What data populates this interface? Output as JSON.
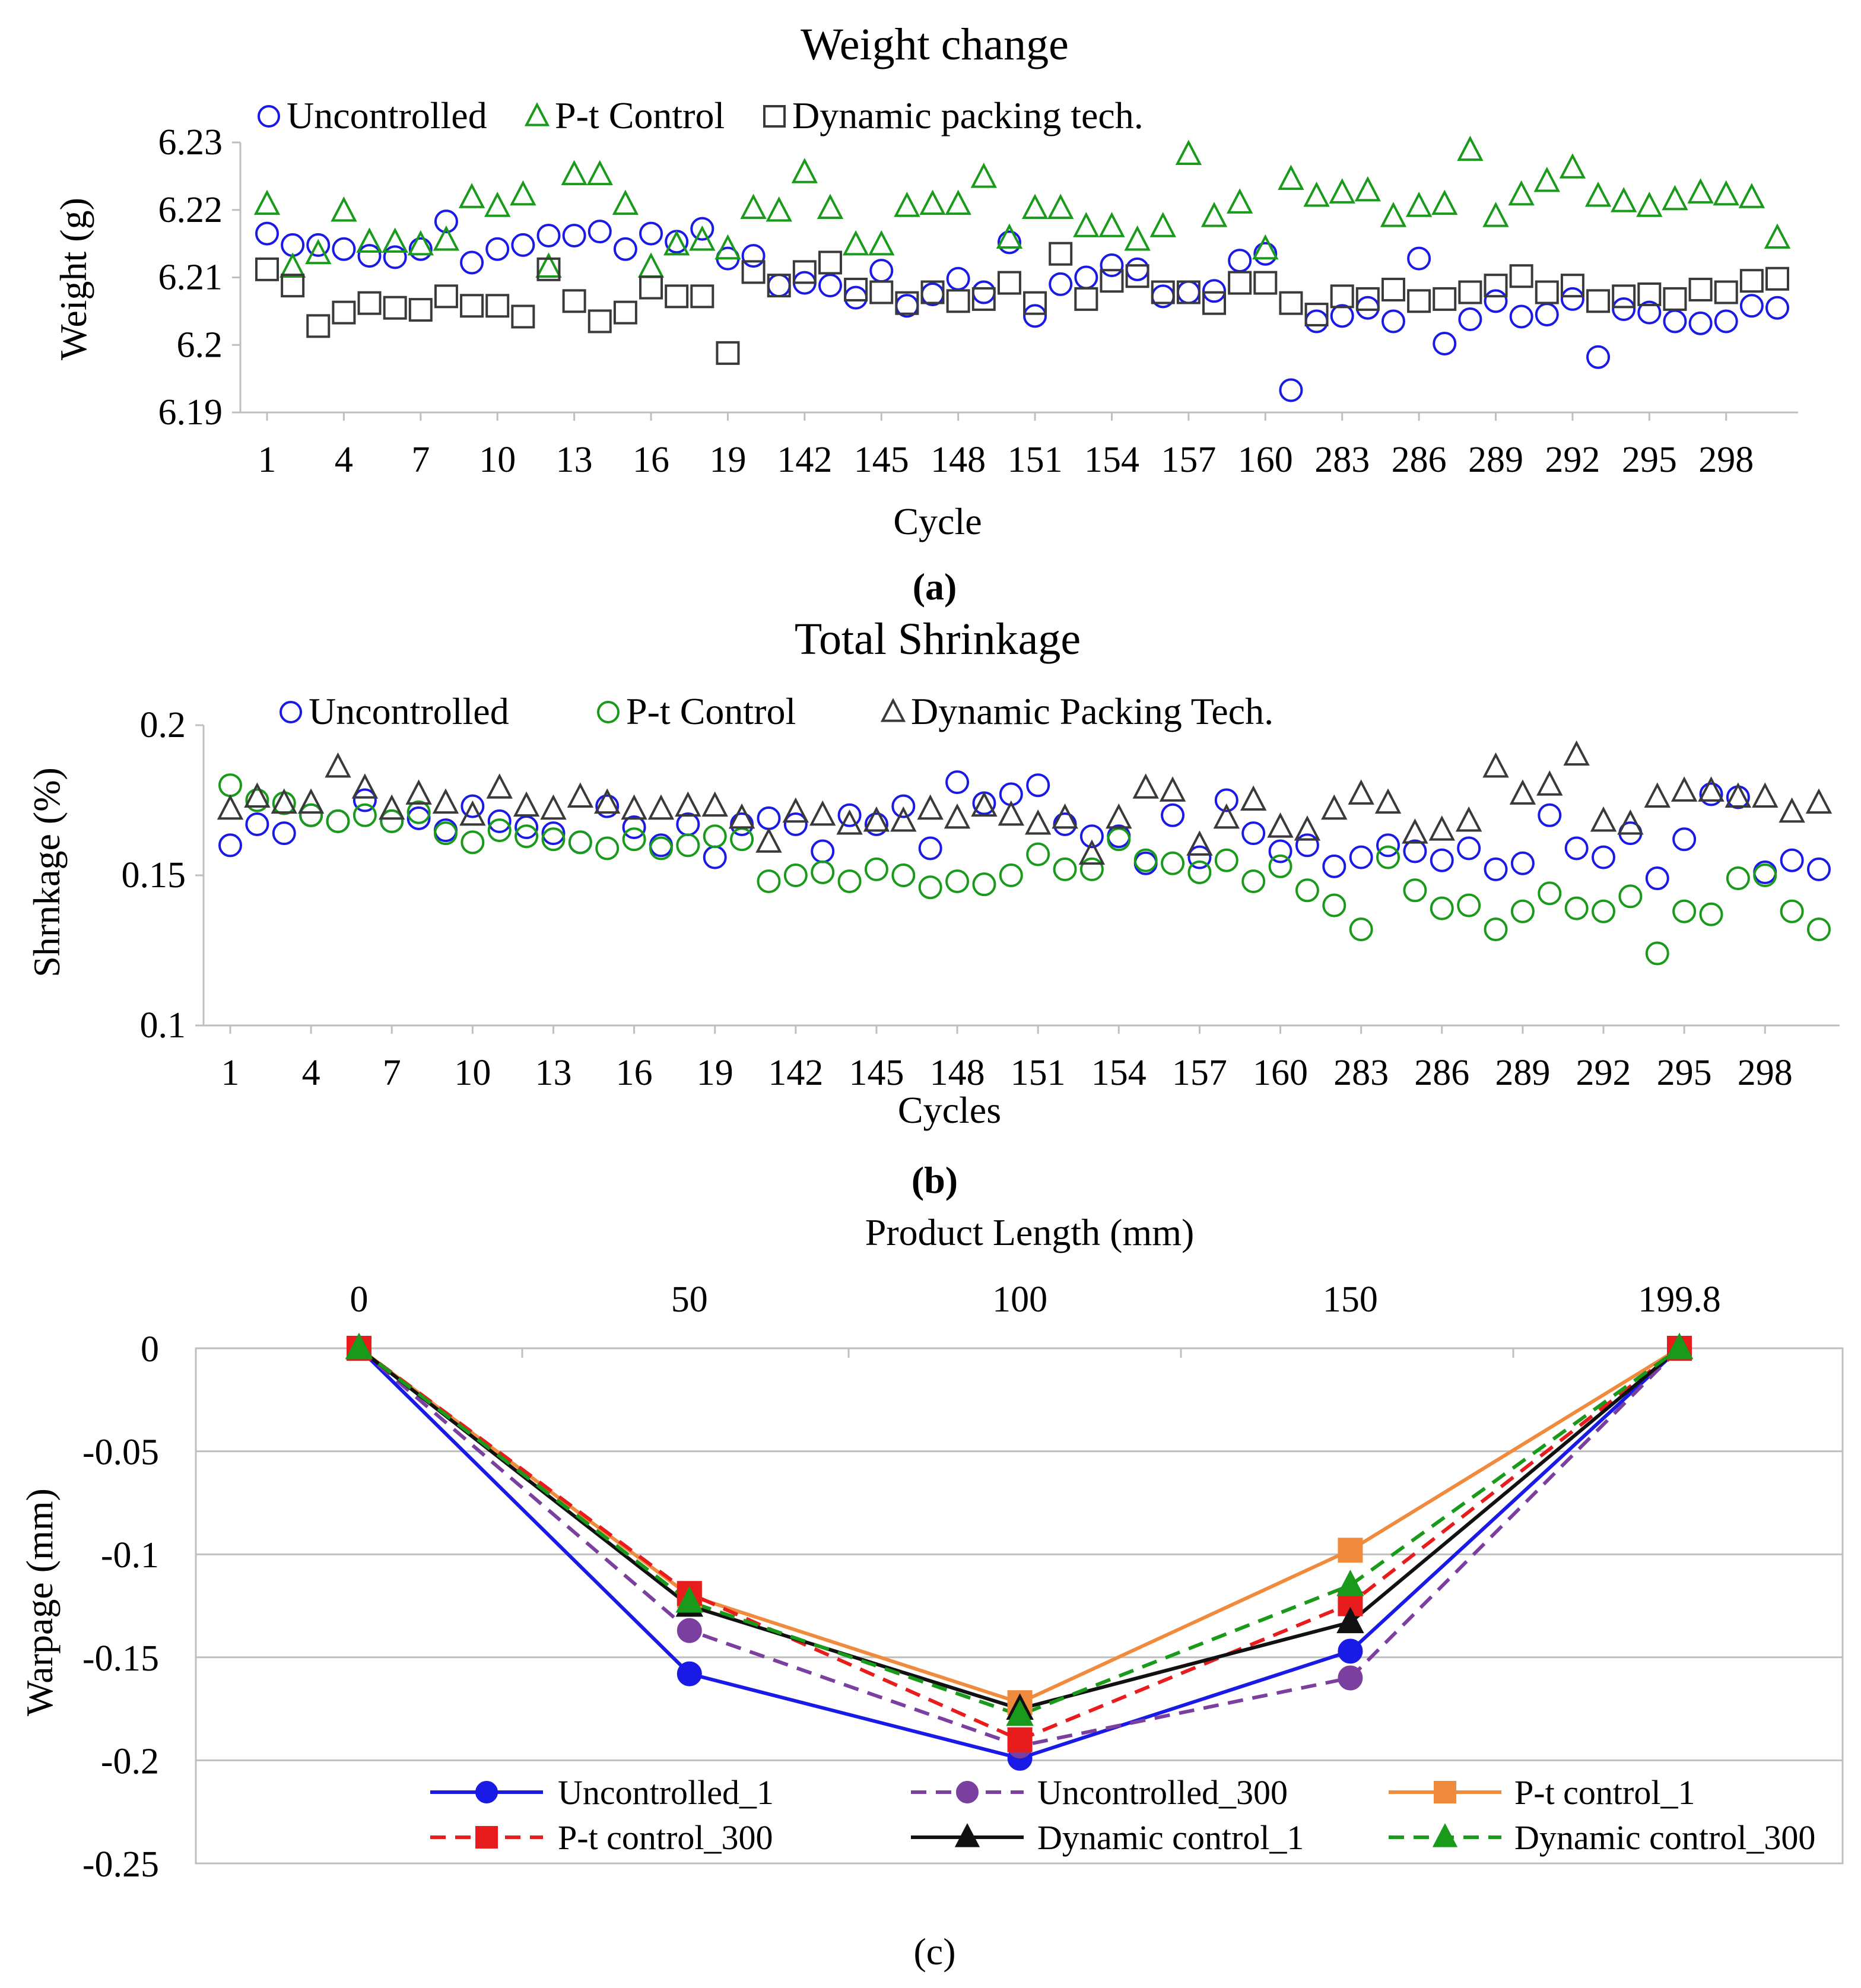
{
  "chart_data": [
    {
      "type": "scatter",
      "title": "Weight change",
      "panel_label": "(a)",
      "xlabel": "Cycle",
      "ylabel": "Weight (g)",
      "ylim": [
        6.19,
        6.23
      ],
      "yticks": [
        "6.19",
        "6.2",
        "6.21",
        "6.22",
        "6.23"
      ],
      "xticklabels": [
        "1",
        "4",
        "7",
        "10",
        "13",
        "16",
        "19",
        "142",
        "145",
        "148",
        "151",
        "154",
        "157",
        "160",
        "283",
        "286",
        "289",
        "292",
        "295",
        "298"
      ],
      "x": [
        1,
        2,
        3,
        4,
        5,
        6,
        7,
        8,
        9,
        10,
        11,
        12,
        13,
        14,
        15,
        16,
        17,
        18,
        19,
        20,
        141,
        142,
        143,
        144,
        145,
        146,
        147,
        148,
        149,
        150,
        151,
        152,
        153,
        154,
        155,
        156,
        157,
        158,
        159,
        160,
        281,
        282,
        283,
        284,
        285,
        286,
        287,
        288,
        289,
        290,
        291,
        292,
        293,
        294,
        295,
        296,
        297,
        298,
        299,
        300
      ],
      "series": [
        {
          "name": "Uncontrolled",
          "marker": "circle",
          "color": "#1a1ae6",
          "values": [
            6.2165,
            6.2148,
            6.2148,
            6.2142,
            6.2132,
            6.213,
            6.2142,
            6.2183,
            6.2122,
            6.2142,
            6.2148,
            6.2162,
            6.2162,
            6.2168,
            6.2142,
            6.2165,
            6.2153,
            6.2172,
            6.2128,
            6.2132,
            6.2088,
            6.2092,
            6.2088,
            6.207,
            6.211,
            6.2058,
            6.2075,
            6.2098,
            6.2078,
            6.2152,
            6.2043,
            6.209,
            6.21,
            6.2118,
            6.2112,
            6.2072,
            6.2078,
            6.208,
            6.2125,
            6.2135,
            6.1933,
            6.2035,
            6.2043,
            6.2055,
            6.2035,
            6.2128,
            6.2002,
            6.2038,
            6.2065,
            6.2042,
            6.2045,
            6.2068,
            6.1982,
            6.2053,
            6.2048,
            6.2035,
            6.2032,
            6.2035,
            6.2058,
            6.2055
          ]
        },
        {
          "name": "P-t Control",
          "marker": "triangle",
          "color": "#1a9a1a",
          "values": [
            6.2208,
            6.2115,
            6.2135,
            6.2198,
            6.2152,
            6.2152,
            6.2148,
            6.2155,
            6.2218,
            6.2205,
            6.2222,
            6.2115,
            6.2252,
            6.2252,
            6.2208,
            6.2115,
            6.2148,
            6.2155,
            6.2142,
            6.2202,
            6.2198,
            6.2255,
            6.2202,
            6.2148,
            6.2148,
            6.2205,
            6.2208,
            6.2208,
            6.2248,
            6.2158,
            6.2202,
            6.2202,
            6.2175,
            6.2175,
            6.2155,
            6.2175,
            6.2282,
            6.219,
            6.221,
            6.2142,
            6.2245,
            6.222,
            6.2225,
            6.2228,
            6.219,
            6.2205,
            6.2208,
            6.2288,
            6.219,
            6.2222,
            6.2242,
            6.2262,
            6.222,
            6.2212,
            6.2205,
            6.2215,
            6.2225,
            6.2222,
            6.2218,
            6.2158
          ]
        },
        {
          "name": "Dynamic packing tech.",
          "marker": "square",
          "color": "#3a3a3a",
          "values": [
            6.2112,
            6.2088,
            6.2028,
            6.2048,
            6.2062,
            6.2055,
            6.2052,
            6.2072,
            6.2058,
            6.2058,
            6.2042,
            6.2112,
            6.2065,
            6.2035,
            6.2048,
            6.2085,
            6.2072,
            6.2072,
            6.1988,
            6.2108,
            6.2088,
            6.2108,
            6.2122,
            6.2082,
            6.2078,
            6.2062,
            6.2078,
            6.2065,
            6.2068,
            6.2092,
            6.2062,
            6.2135,
            6.2068,
            6.2095,
            6.2102,
            6.2078,
            6.2078,
            6.2062,
            6.2092,
            6.2092,
            6.2062,
            6.2045,
            6.2072,
            6.2068,
            6.2082,
            6.2065,
            6.2068,
            6.2078,
            6.2088,
            6.2102,
            6.2078,
            6.2088,
            6.2065,
            6.2072,
            6.2075,
            6.2068,
            6.2082,
            6.2078,
            6.2095,
            6.2098
          ]
        }
      ]
    },
    {
      "type": "scatter",
      "title": "Total Shrinkage",
      "panel_label": "(b)",
      "xlabel": "Cycles",
      "ylabel": "Shrnkage (%)",
      "ylim": [
        0.1,
        0.2
      ],
      "yticks": [
        "0.1",
        "0.15",
        "0.2"
      ],
      "xticklabels": [
        "1",
        "4",
        "7",
        "10",
        "13",
        "16",
        "19",
        "142",
        "145",
        "148",
        "151",
        "154",
        "157",
        "160",
        "283",
        "286",
        "289",
        "292",
        "295",
        "298"
      ],
      "x": [
        1,
        2,
        3,
        4,
        5,
        6,
        7,
        8,
        9,
        10,
        11,
        12,
        13,
        14,
        15,
        16,
        17,
        18,
        19,
        20,
        141,
        142,
        143,
        144,
        145,
        146,
        147,
        148,
        149,
        150,
        151,
        152,
        153,
        154,
        155,
        156,
        157,
        158,
        159,
        160,
        281,
        282,
        283,
        284,
        285,
        286,
        287,
        288,
        289,
        290,
        291,
        292,
        293,
        294,
        295,
        296,
        297,
        298,
        299,
        300
      ],
      "series": [
        {
          "name": "Uncontrolled",
          "marker": "circle",
          "color": "#1a1ae6",
          "values": [
            0.16,
            0.167,
            0.164,
            0.17,
            0.168,
            0.175,
            0.168,
            0.169,
            0.165,
            0.173,
            0.168,
            0.166,
            0.164,
            0.161,
            0.173,
            0.166,
            0.16,
            0.167,
            0.156,
            0.167,
            0.169,
            0.167,
            0.158,
            0.17,
            0.167,
            0.173,
            0.159,
            0.181,
            0.174,
            0.177,
            0.18,
            0.167,
            0.163,
            0.163,
            0.154,
            0.17,
            0.156,
            0.175,
            0.164,
            0.158,
            0.16,
            0.153,
            0.156,
            0.16,
            0.158,
            0.155,
            0.159,
            0.152,
            0.154,
            0.17,
            0.159,
            0.156,
            0.164,
            0.149,
            0.162,
            0.177,
            0.176,
            0.151,
            0.155,
            0.152
          ]
        },
        {
          "name": "P-t Control",
          "marker": "circle",
          "color": "#1a9a1a",
          "values": [
            0.18,
            0.175,
            0.174,
            0.17,
            0.168,
            0.17,
            0.168,
            0.171,
            0.164,
            0.161,
            0.165,
            0.163,
            0.162,
            0.161,
            0.159,
            0.162,
            0.159,
            0.16,
            0.163,
            0.162,
            0.148,
            0.15,
            0.151,
            0.148,
            0.152,
            0.15,
            0.146,
            0.148,
            0.147,
            0.15,
            0.157,
            0.152,
            0.152,
            0.162,
            0.155,
            0.154,
            0.151,
            0.155,
            0.148,
            0.153,
            0.145,
            0.14,
            0.132,
            0.156,
            0.145,
            0.139,
            0.14,
            0.132,
            0.138,
            0.144,
            0.139,
            0.138,
            0.143,
            0.124,
            0.138,
            0.137,
            0.149,
            0.15,
            0.138,
            0.132
          ]
        },
        {
          "name": "Dynamic Packing Tech.",
          "marker": "triangle",
          "color": "#3a3a3a",
          "values": [
            0.172,
            0.176,
            0.174,
            0.174,
            0.186,
            0.179,
            0.172,
            0.177,
            0.174,
            0.17,
            0.179,
            0.173,
            0.172,
            0.176,
            0.174,
            0.172,
            0.172,
            0.173,
            0.173,
            0.169,
            0.161,
            0.171,
            0.17,
            0.167,
            0.168,
            0.168,
            0.172,
            0.169,
            0.173,
            0.17,
            0.167,
            0.169,
            0.157,
            0.169,
            0.179,
            0.178,
            0.16,
            0.169,
            0.175,
            0.166,
            0.165,
            0.172,
            0.177,
            0.174,
            0.164,
            0.165,
            0.168,
            0.186,
            0.177,
            0.18,
            0.19,
            0.168,
            0.167,
            0.176,
            0.178,
            0.178,
            0.176,
            0.176,
            0.171,
            0.174
          ]
        }
      ]
    },
    {
      "type": "line",
      "title": "Product Length (mm)",
      "panel_label": "(c)",
      "xlabel": "Product Length (mm)",
      "ylabel": "Warpage (mm)",
      "x": [
        0,
        50,
        100,
        150,
        199.8
      ],
      "xticklabels": [
        "0",
        "50",
        "100",
        "150",
        "199.8"
      ],
      "ylim": [
        -0.25,
        0
      ],
      "yticks": [
        "0",
        "-0.05",
        "-0.1",
        "-0.15",
        "-0.2",
        "-0.25"
      ],
      "legend_position": "bottom",
      "series": [
        {
          "name": "Uncontrolled_1",
          "color": "#1a1ae6",
          "dash": "solid",
          "marker": "circle",
          "values": [
            0,
            -0.158,
            -0.199,
            -0.147,
            0
          ]
        },
        {
          "name": "Uncontrolled_300",
          "color": "#7b3fa0",
          "dash": "dashed",
          "marker": "circle",
          "values": [
            0,
            -0.137,
            -0.193,
            -0.16,
            0
          ]
        },
        {
          "name": "P-t control_1",
          "color": "#f08a3c",
          "dash": "solid",
          "marker": "square",
          "values": [
            0,
            -0.12,
            -0.172,
            -0.098,
            0
          ]
        },
        {
          "name": "P-t control_300",
          "color": "#e81c1c",
          "dash": "dashed",
          "marker": "square",
          "values": [
            0,
            -0.119,
            -0.19,
            -0.124,
            0
          ]
        },
        {
          "name": "Dynamic control_1",
          "color": "#111111",
          "dash": "solid",
          "marker": "triangle",
          "values": [
            0,
            -0.125,
            -0.175,
            -0.133,
            0
          ]
        },
        {
          "name": "Dynamic control_300",
          "color": "#1a9a1a",
          "dash": "dashed",
          "marker": "triangle",
          "values": [
            0,
            -0.123,
            -0.178,
            -0.115,
            0
          ]
        }
      ]
    }
  ]
}
